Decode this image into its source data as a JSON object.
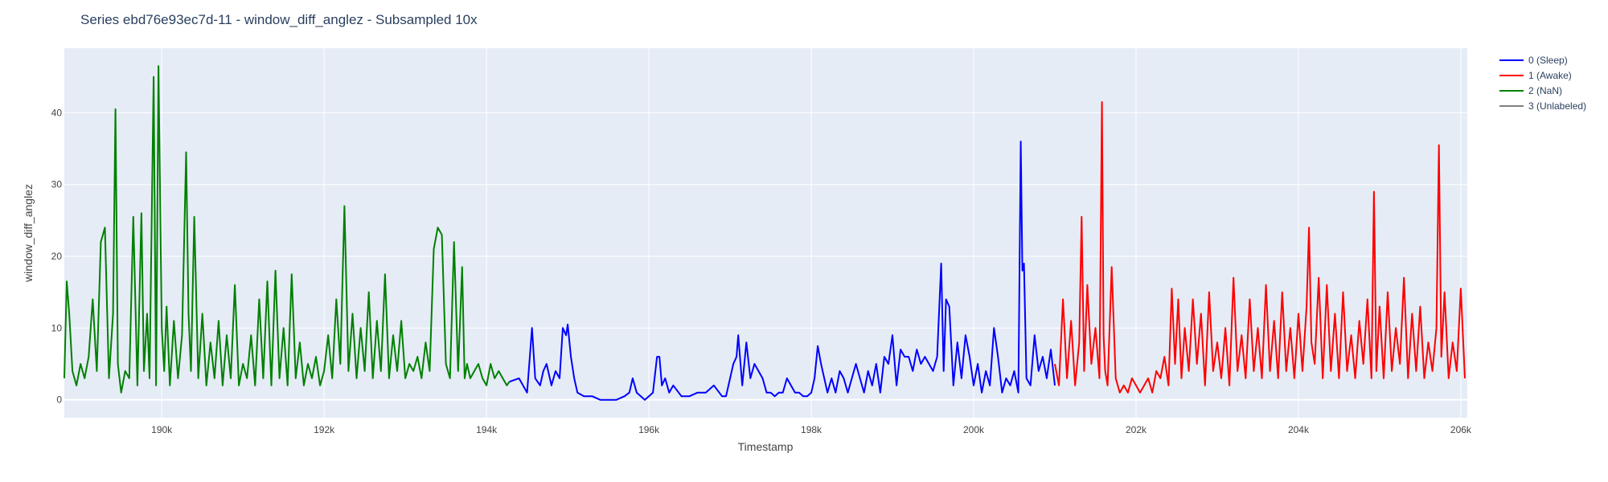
{
  "chart_data": {
    "type": "line",
    "title": "Series ebd76e93ec7d-11 - window_diff_anglez - Subsampled 10x",
    "xlabel": "Timestamp",
    "ylabel": "window_diff_anglez",
    "xlim": [
      188800,
      206080
    ],
    "ylim": [
      -2.5,
      49
    ],
    "x_ticks": [
      190000,
      192000,
      194000,
      196000,
      198000,
      200000,
      202000,
      204000,
      206000
    ],
    "x_tick_labels": [
      "190k",
      "192k",
      "194k",
      "196k",
      "198k",
      "200k",
      "202k",
      "204k",
      "206k"
    ],
    "y_ticks": [
      0,
      10,
      20,
      30,
      40
    ],
    "y_tick_labels": [
      "0",
      "10",
      "20",
      "30",
      "40"
    ],
    "grid": true,
    "legend_position": "top-right",
    "colors": {
      "plot_background": "#e5ecf6",
      "grid": "#ffffff"
    },
    "series": [
      {
        "name": "0 (Sleep)",
        "color": "#0000ff",
        "segments": [
          {
            "x": [
              194280,
              194400,
              194500,
              194560,
              194600,
              194660,
              194700,
              194740,
              194800,
              194850,
              194900,
              194940,
              194980,
              195000,
              195040,
              195080,
              195120,
              195200,
              195300,
              195400,
              195500,
              195600,
              195700,
              195760,
              195800,
              195850,
              195900,
              195950,
              196000,
              196050,
              196100,
              196130,
              196160,
              196200,
              196250,
              196300,
              196400,
              196500,
              196600,
              196700,
              196800,
              196900,
              196950,
              197000,
              197040,
              197080,
              197100,
              197150,
              197200,
              197250,
              197300,
              197350,
              197400,
              197450,
              197500,
              197550,
              197600,
              197650,
              197700,
              197750,
              197800,
              197850,
              197900,
              197950,
              198000,
              198040,
              198080,
              198120,
              198160,
              198200,
              198250,
              198300,
              198350,
              198400,
              198450,
              198500,
              198550,
              198600,
              198650,
              198700,
              198750,
              198800,
              198850,
              198900,
              198950,
              199000,
              199050,
              199100,
              199150,
              199200,
              199250,
              199300,
              199350,
              199400,
              199450,
              199500,
              199550,
              199600,
              199630,
              199660,
              199700,
              199750,
              199800,
              199850,
              199900,
              199950,
              200000,
              200050,
              200100,
              200150,
              200200,
              200250,
              200300,
              200350,
              200400,
              200450,
              200500,
              200550,
              200580,
              200600,
              200620,
              200650,
              200700,
              200750,
              200800,
              200850,
              200900,
              200950,
              201000
            ],
            "y": [
              2.5,
              3,
              1,
              10,
              3,
              2,
              4,
              5,
              2,
              4,
              3,
              10,
              9,
              10.5,
              6,
              3,
              1,
              0.5,
              0.5,
              0,
              0,
              0,
              0.5,
              1,
              3,
              1,
              0.5,
              0,
              0.5,
              1,
              6,
              6,
              2,
              3,
              1,
              2,
              0.5,
              0.5,
              1,
              1,
              2,
              0.5,
              0.5,
              3,
              5,
              6,
              9,
              2,
              8,
              3,
              5,
              4,
              3,
              1,
              1,
              0.5,
              1,
              1,
              3,
              2,
              1,
              1,
              0.5,
              0.5,
              1,
              3,
              7.5,
              5,
              3,
              1,
              3,
              1,
              4,
              3,
              1,
              3,
              5,
              3,
              1,
              4,
              2,
              5,
              1,
              6,
              5,
              9,
              2,
              7,
              6,
              6,
              4,
              7,
              5,
              6,
              5,
              4,
              6,
              19,
              4,
              14,
              13,
              2,
              8,
              3,
              9,
              6,
              2,
              5,
              1,
              4,
              2,
              10,
              6,
              1,
              3,
              2,
              4,
              1,
              36,
              18,
              19,
              3,
              2,
              9,
              4,
              6,
              3,
              7,
              2
            ]
          }
        ]
      },
      {
        "name": "1 (Awake)",
        "color": "#ff0000",
        "segments": [
          {
            "x": [
              201000,
              201050,
              201100,
              201150,
              201200,
              201250,
              201300,
              201330,
              201360,
              201400,
              201450,
              201500,
              201550,
              201580,
              201600,
              201620,
              201650,
              201700,
              201750,
              201800,
              201850,
              201900,
              201950,
              202000,
              202050,
              202100,
              202150,
              202200,
              202250,
              202300,
              202350,
              202400,
              202440,
              202480,
              202520,
              202560,
              202600,
              202650,
              202700,
              202750,
              202800,
              202850,
              202900,
              202950,
              203000,
              203050,
              203100,
              203150,
              203200,
              203250,
              203300,
              203350,
              203400,
              203450,
              203500,
              203550,
              203600,
              203650,
              203700,
              203750,
              203800,
              203850,
              203900,
              203950,
              204000,
              204050,
              204100,
              204130,
              204160,
              204200,
              204250,
              204300,
              204350,
              204400,
              204450,
              204500,
              204550,
              204600,
              204650,
              204700,
              204750,
              204800,
              204850,
              204900,
              204930,
              204960,
              205000,
              205050,
              205100,
              205150,
              205200,
              205250,
              205300,
              205350,
              205400,
              205450,
              205500,
              205550,
              205600,
              205650,
              205700,
              205730,
              205760,
              205800,
              205850,
              205900,
              205950,
              206000,
              206050
            ],
            "y": [
              5,
              2,
              14,
              3,
              11,
              2,
              8,
              25.5,
              4,
              16,
              5,
              10,
              3,
              41.5,
              9,
              4,
              2,
              18.5,
              3,
              1,
              2,
              1,
              3,
              2,
              1,
              2,
              3,
              1,
              4,
              3,
              6,
              2,
              15.5,
              5,
              14,
              3,
              10,
              4,
              14,
              5,
              12,
              2,
              15,
              4,
              8,
              3,
              10,
              2,
              17,
              4,
              9,
              3,
              14,
              4,
              10,
              3,
              16,
              4,
              11,
              3,
              15,
              4,
              10,
              3,
              12,
              4,
              13,
              24,
              8,
              5,
              17,
              3,
              16,
              4,
              12,
              3,
              15,
              4,
              9,
              3,
              11,
              5,
              14,
              3,
              29,
              4,
              13,
              3,
              15,
              4,
              10,
              5,
              17,
              3,
              12,
              4,
              13,
              3,
              8,
              4,
              10,
              35.5,
              6,
              15,
              3,
              8,
              4,
              15.5,
              3
            ]
          }
        ]
      },
      {
        "name": "2 (NaN)",
        "color": "#008000",
        "segments": [
          {
            "x": [
              188800,
              188830,
              188860,
              188900,
              188950,
              189000,
              189050,
              189100,
              189150,
              189200,
              189250,
              189300,
              189350,
              189400,
              189430,
              189460,
              189500,
              189550,
              189600,
              189650,
              189700,
              189750,
              189780,
              189820,
              189850,
              189900,
              189930,
              189960,
              190000,
              190030,
              190060,
              190100,
              190150,
              190200,
              190250,
              190300,
              190330,
              190360,
              190400,
              190450,
              190500,
              190550,
              190600,
              190650,
              190700,
              190750,
              190800,
              190850,
              190900,
              190950,
              191000,
              191050,
              191100,
              191150,
              191200,
              191250,
              191300,
              191350,
              191400,
              191450,
              191500,
              191550,
              191600,
              191650,
              191700,
              191750,
              191800,
              191850,
              191900,
              191950,
              192000,
              192050,
              192100,
              192150,
              192200,
              192250,
              192300,
              192350,
              192400,
              192450,
              192500,
              192550,
              192600,
              192650,
              192700,
              192750,
              192800,
              192850,
              192900,
              192950,
              193000,
              193050,
              193100,
              193150,
              193200,
              193250,
              193300,
              193350,
              193400,
              193450,
              193500,
              193550,
              193600,
              193650,
              193700,
              193730,
              193760,
              193800,
              193850,
              193900,
              193950,
              194000,
              194050,
              194100,
              194150,
              194200,
              194250,
              194280
            ],
            "y": [
              3,
              16.5,
              12,
              4,
              2,
              5,
              3,
              6,
              14,
              4,
              22,
              24,
              3,
              12,
              40.5,
              5,
              1,
              4,
              3,
              25.5,
              2,
              26,
              4,
              12,
              3,
              45,
              2,
              46.5,
              10,
              4,
              13,
              2,
              11,
              3,
              9,
              34.5,
              12,
              4,
              25.5,
              3,
              12,
              2,
              8,
              3,
              11,
              2,
              9,
              3,
              16,
              2,
              5,
              3,
              9,
              2,
              14,
              3,
              16.5,
              2,
              18,
              3,
              10,
              2,
              17.5,
              3,
              8,
              2,
              5,
              3,
              6,
              2,
              4,
              9,
              3,
              14,
              5,
              27,
              4,
              12,
              3,
              10,
              4,
              15,
              3,
              11,
              4,
              17.5,
              3,
              9,
              4,
              11,
              3,
              5,
              4,
              6,
              3,
              8,
              4,
              21,
              24,
              23,
              5,
              3,
              22,
              4,
              18.5,
              3,
              5,
              3,
              4,
              5,
              3,
              2,
              5,
              3,
              4,
              3,
              2,
              2.5
            ]
          }
        ]
      },
      {
        "name": "3 (Unlabeled)",
        "color": "#808080",
        "segments": []
      }
    ]
  }
}
